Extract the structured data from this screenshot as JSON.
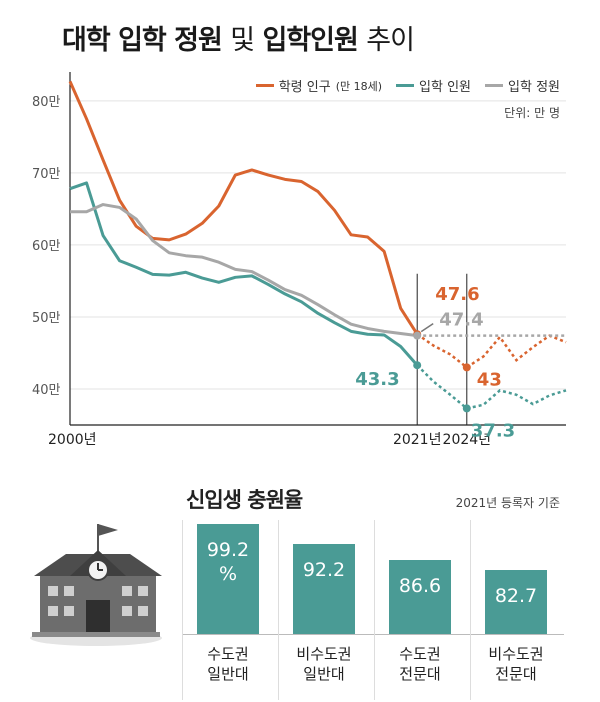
{
  "title": {
    "bold1": "대학 입학 정원",
    "mid": "및",
    "bold2": "입학인원",
    "tail": "추이"
  },
  "legend": [
    {
      "label": "학령 인구",
      "sub": "(만 18세)",
      "color": "#d9642f"
    },
    {
      "label": "입학 인원",
      "sub": "",
      "color": "#4a9b95"
    },
    {
      "label": "입학 정원",
      "sub": "",
      "color": "#a7a7a7"
    }
  ],
  "unit": "단위: 만 명",
  "chart_data": [
    {
      "type": "line",
      "title": "대학 입학 정원 및 입학인원 추이",
      "y_ticks": [
        "80만",
        "70만",
        "60만",
        "50만",
        "40만"
      ],
      "y_tick_values": [
        80,
        70,
        60,
        50,
        40
      ],
      "ylim": [
        35,
        84
      ],
      "x_ticks": [
        "2000년",
        "2021년",
        "2024년"
      ],
      "x_tick_values": [
        2000,
        2021,
        2024
      ],
      "xlim": [
        2000,
        2030
      ],
      "series": [
        {
          "name": "학령 인구 (만 18세)",
          "color": "#d9642f",
          "x": [
            2000,
            2001,
            2002,
            2003,
            2004,
            2005,
            2006,
            2007,
            2008,
            2009,
            2010,
            2011,
            2012,
            2013,
            2014,
            2015,
            2016,
            2017,
            2018,
            2019,
            2020,
            2021
          ],
          "y": [
            82.7,
            77.5,
            71.8,
            66.2,
            62.6,
            60.9,
            60.7,
            61.5,
            63.0,
            65.4,
            69.7,
            70.4,
            69.7,
            69.1,
            68.8,
            67.4,
            64.8,
            61.4,
            61.1,
            59.1,
            51.2,
            47.6
          ],
          "projection_x": [
            2021,
            2022,
            2023,
            2024,
            2025,
            2026,
            2027,
            2028,
            2029,
            2030
          ],
          "projection_y": [
            47.6,
            46.0,
            44.8,
            43.0,
            44.5,
            47.2,
            44.0,
            45.8,
            47.4,
            46.5
          ]
        },
        {
          "name": "입학 인원",
          "color": "#4a9b95",
          "x": [
            2000,
            2001,
            2002,
            2003,
            2004,
            2005,
            2006,
            2007,
            2008,
            2009,
            2010,
            2011,
            2012,
            2013,
            2014,
            2015,
            2016,
            2017,
            2018,
            2019,
            2020,
            2021
          ],
          "y": [
            67.8,
            68.6,
            61.3,
            57.8,
            56.9,
            55.9,
            55.8,
            56.2,
            55.4,
            54.8,
            55.5,
            55.7,
            54.5,
            53.2,
            52.1,
            50.5,
            49.2,
            48.0,
            47.6,
            47.5,
            45.9,
            43.3
          ],
          "projection_x": [
            2021,
            2022,
            2023,
            2024,
            2025,
            2026,
            2027,
            2028,
            2029,
            2030
          ],
          "projection_y": [
            43.3,
            41.0,
            39.2,
            37.3,
            37.8,
            39.8,
            39.2,
            37.9,
            39.1,
            39.8
          ]
        },
        {
          "name": "입학 정원",
          "color": "#a7a7a7",
          "x": [
            2000,
            2001,
            2002,
            2003,
            2004,
            2005,
            2006,
            2007,
            2008,
            2009,
            2010,
            2011,
            2012,
            2013,
            2014,
            2015,
            2016,
            2017,
            2018,
            2019,
            2020,
            2021
          ],
          "y": [
            64.6,
            64.6,
            65.6,
            65.2,
            63.6,
            60.6,
            58.9,
            58.5,
            58.3,
            57.6,
            56.6,
            56.3,
            55.1,
            53.8,
            53.0,
            51.7,
            50.3,
            49.0,
            48.4,
            48.0,
            47.7,
            47.4
          ],
          "projection_x": [
            2021,
            2030
          ],
          "projection_y": [
            47.4,
            47.4
          ]
        }
      ],
      "annotations": [
        {
          "text": "47.6",
          "series": "학령 인구 (만 18세)",
          "x": 2021,
          "y": 47.6
        },
        {
          "text": "47.4",
          "series": "입학 정원",
          "x": 2021,
          "y": 47.4
        },
        {
          "text": "43.3",
          "series": "입학 인원",
          "x": 2021,
          "y": 43.3
        },
        {
          "text": "43",
          "series": "학령 인구 (만 18세)",
          "x": 2024,
          "y": 43.0
        },
        {
          "text": "37.3",
          "series": "입학 인원",
          "x": 2024,
          "y": 37.3
        }
      ]
    },
    {
      "type": "bar",
      "title": "신입생 충원율",
      "note": "2021년 등록자 기준",
      "categories": [
        "수도권\n일반대",
        "비수도권\n일반대",
        "수도권\n전문대",
        "비수도권\n전문대"
      ],
      "values": [
        99.2,
        92.2,
        86.6,
        82.7
      ],
      "value_labels": [
        "99.2\n%",
        "92.2",
        "86.6",
        "82.7"
      ],
      "ylim": [
        0,
        100
      ],
      "color": "#4a9b95"
    }
  ]
}
